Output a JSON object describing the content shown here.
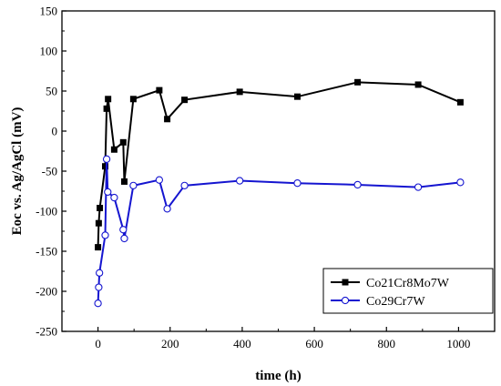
{
  "chart_data": {
    "type": "line",
    "xlabel": "time (h)",
    "ylabel": "Eoc vs. Ag/AgCl (mV)",
    "xlim": [
      -100,
      1100
    ],
    "ylim": [
      -250,
      150
    ],
    "xticks": [
      0,
      200,
      400,
      600,
      800,
      1000
    ],
    "yticks": [
      -250,
      -200,
      -150,
      -100,
      -50,
      0,
      50,
      100,
      150
    ],
    "grid": false,
    "legend_position": "bottom-right",
    "series": [
      {
        "name": "Co21Cr8Mo7W",
        "color": "#000000",
        "marker": "filled-square",
        "x": [
          0,
          2,
          5,
          20,
          24,
          28,
          45,
          70,
          73,
          98,
          170,
          192,
          240,
          393,
          553,
          720,
          888,
          1005
        ],
        "y": [
          -145,
          -115,
          -96,
          -44,
          28,
          40,
          -23,
          -14,
          -63,
          40,
          51,
          15,
          39,
          49,
          43,
          61,
          58,
          36
        ]
      },
      {
        "name": "Co29Cr7W",
        "color": "#1515d0",
        "marker": "open-circle",
        "x": [
          0,
          2,
          4,
          20,
          24,
          27,
          45,
          70,
          73,
          98,
          170,
          192,
          240,
          393,
          553,
          720,
          888,
          1005
        ],
        "y": [
          -215,
          -195,
          -177,
          -130,
          -35,
          -76,
          -83,
          -123,
          -134,
          -68,
          -61,
          -97,
          -68,
          -62,
          -65,
          -67,
          -70,
          -64
        ]
      }
    ]
  }
}
